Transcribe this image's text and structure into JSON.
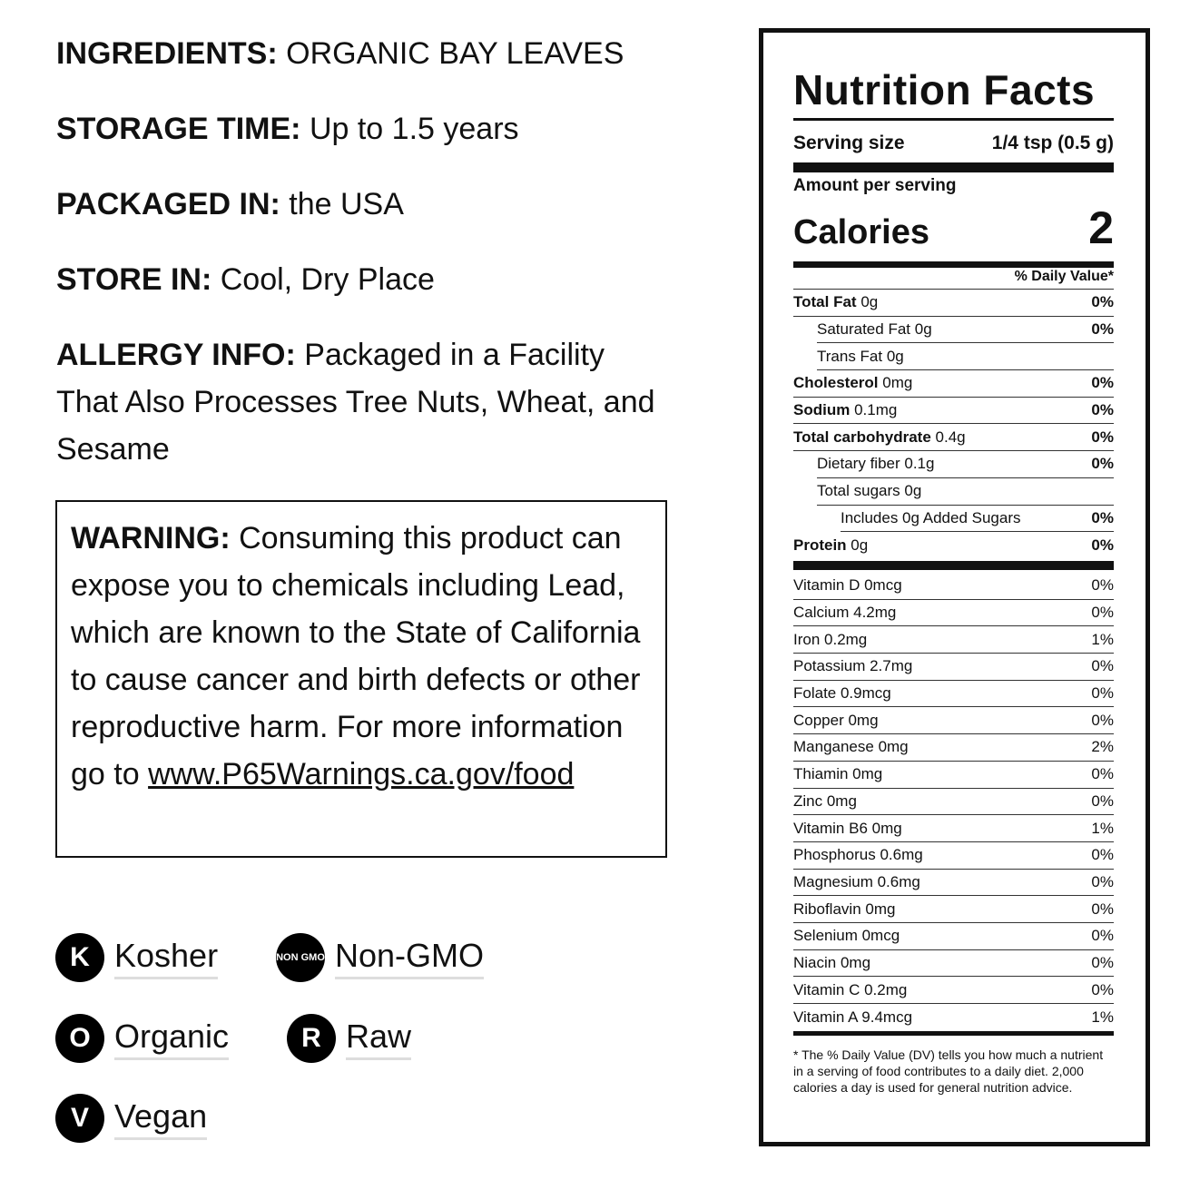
{
  "info": [
    {
      "label": "INGREDIENTS:",
      "value": "ORGANIC BAY LEAVES"
    },
    {
      "label": "STORAGE TIME:",
      "value": "Up to 1.5 years"
    },
    {
      "label": "PACKAGED IN:",
      "value": "the USA"
    },
    {
      "label": "STORE IN:",
      "value": "Cool, Dry Place"
    },
    {
      "label": "ALLERGY INFO:",
      "value": "Packaged in a Facility That Also Processes Tree Nuts, Wheat, and Sesame"
    }
  ],
  "warning": {
    "label": "WARNING:",
    "text": "Consuming this product can expose you to chemicals including Lead, which are known to the State of California to cause cancer and birth defects or other reproductive harm. For more information go to",
    "link": "www.P65Warnings.ca.gov/food"
  },
  "badges": [
    {
      "icon": "K",
      "label": "Kosher"
    },
    {
      "icon": "NON GMO",
      "label": "Non-GMO"
    },
    {
      "icon": "O",
      "label": "Organic"
    },
    {
      "icon": "R",
      "label": "Raw"
    },
    {
      "icon": "V",
      "label": "Vegan"
    }
  ],
  "nutrition": {
    "title": "Nutrition Facts",
    "serving_label": "Serving size",
    "serving_value": "1/4 tsp (0.5 g)",
    "amount_label": "Amount per serving",
    "calories_label": "Calories",
    "calories_value": "2",
    "dv_header": "% Daily Value*",
    "rows": [
      {
        "name": "Total Fat",
        "amount": "0g",
        "dv": "0%",
        "bold": true,
        "indent": 0
      },
      {
        "name": "Saturated Fat",
        "amount": "0g",
        "dv": "0%",
        "bold": false,
        "indent": 1
      },
      {
        "name": "Trans Fat",
        "amount": "0g",
        "dv": "",
        "bold": false,
        "indent": 1
      },
      {
        "name": "Cholesterol",
        "amount": "0mg",
        "dv": "0%",
        "bold": true,
        "indent": 0
      },
      {
        "name": "Sodium",
        "amount": "0.1mg",
        "dv": "0%",
        "bold": true,
        "indent": 0
      },
      {
        "name": "Total carbohydrate",
        "amount": "0.4g",
        "dv": "0%",
        "bold": true,
        "indent": 0
      },
      {
        "name": "Dietary fiber",
        "amount": "0.1g",
        "dv": "0%",
        "bold": false,
        "indent": 1
      },
      {
        "name": "Total sugars",
        "amount": "0g",
        "dv": "",
        "bold": false,
        "indent": 1
      },
      {
        "name": "Includes 0g Added Sugars",
        "amount": "",
        "dv": "0%",
        "bold": false,
        "indent": 2
      },
      {
        "name": "Protein",
        "amount": "0g",
        "dv": "0%",
        "bold": true,
        "indent": 0
      }
    ],
    "vitamins": [
      {
        "name": "Vitamin D 0mcg",
        "dv": "0%"
      },
      {
        "name": "Calcium 4.2mg",
        "dv": "0%"
      },
      {
        "name": "Iron 0.2mg",
        "dv": "1%"
      },
      {
        "name": "Potassium 2.7mg",
        "dv": "0%"
      },
      {
        "name": "Folate 0.9mcg",
        "dv": "0%"
      },
      {
        "name": "Copper 0mg",
        "dv": "0%"
      },
      {
        "name": "Manganese 0mg",
        "dv": "2%"
      },
      {
        "name": "Thiamin 0mg",
        "dv": "0%"
      },
      {
        "name": "Zinc 0mg",
        "dv": "0%"
      },
      {
        "name": "Vitamin B6 0mg",
        "dv": "1%"
      },
      {
        "name": "Phosphorus 0.6mg",
        "dv": "0%"
      },
      {
        "name": "Magnesium 0.6mg",
        "dv": "0%"
      },
      {
        "name": "Riboflavin 0mg",
        "dv": "0%"
      },
      {
        "name": "Selenium 0mcg",
        "dv": "0%"
      },
      {
        "name": "Niacin 0mg",
        "dv": "0%"
      },
      {
        "name": "Vitamin C 0.2mg",
        "dv": "0%"
      },
      {
        "name": "Vitamin A 9.4mcg",
        "dv": "1%"
      }
    ],
    "footnote": "* The % Daily Value (DV) tells you how much a nutrient in a serving of food contributes to a daily diet. 2,000 calories a day is used for general nutrition advice."
  }
}
